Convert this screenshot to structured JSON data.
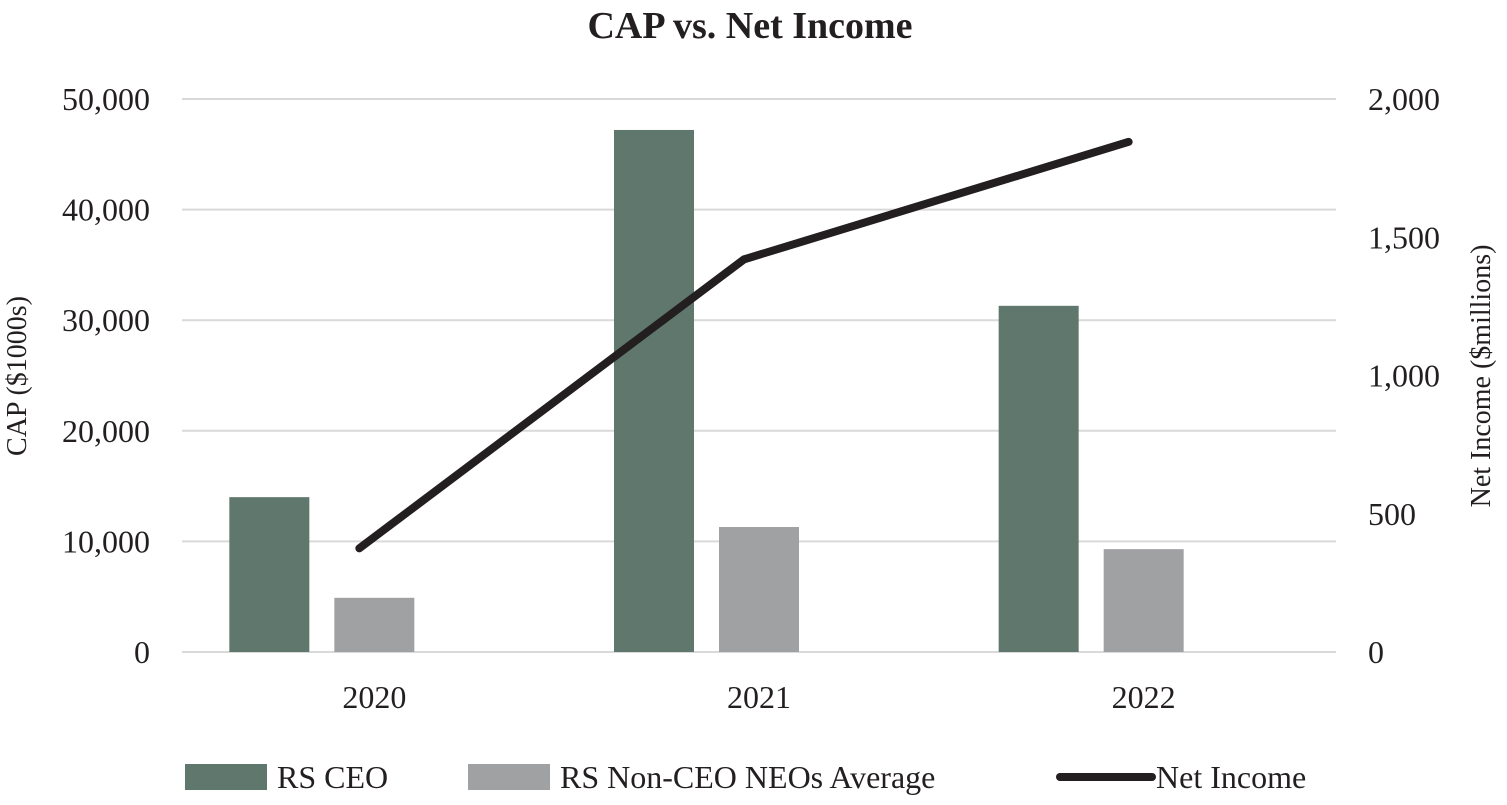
{
  "chart_data": {
    "type": "bar",
    "title": "CAP vs. Net Income",
    "categories": [
      "2020",
      "2021",
      "2022"
    ],
    "y_left": {
      "label": "CAP ($1000s)",
      "ylim": [
        0,
        50000
      ],
      "ticks": [
        0,
        10000,
        20000,
        30000,
        40000,
        50000
      ],
      "tick_labels": [
        "0",
        "10,000",
        "20,000",
        "30,000",
        "40,000",
        "50,000"
      ]
    },
    "y_right": {
      "label": "Net Income ($millions)",
      "ylim": [
        0,
        2000
      ],
      "ticks": [
        0,
        500,
        1000,
        1500,
        2000
      ],
      "tick_labels": [
        "0",
        "500",
        "1,000",
        "1,500",
        "2,000"
      ]
    },
    "series": [
      {
        "name": "RS CEO",
        "kind": "bar",
        "axis": "left",
        "color": "#5f776c",
        "values": [
          14000,
          47200,
          31300
        ]
      },
      {
        "name": "RS Non-CEO NEOs Average",
        "kind": "bar",
        "axis": "left",
        "color": "#a0a1a3",
        "values": [
          4900,
          11300,
          9300
        ]
      },
      {
        "name": "Net Income",
        "kind": "line",
        "axis": "right",
        "color": "#231f20",
        "values": [
          375,
          1420,
          1845
        ]
      }
    ],
    "grid": true,
    "legend_position": "bottom"
  }
}
